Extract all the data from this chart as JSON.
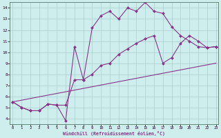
{
  "xlabel": "Windchill (Refroidissement éolien,°C)",
  "bg_color": "#cdeeed",
  "line_color": "#883388",
  "grid_color": "#a8cccc",
  "line1_x": [
    0,
    1,
    2,
    3,
    4,
    5,
    6,
    7,
    8,
    9,
    10,
    11,
    12,
    13,
    14,
    15,
    16,
    17,
    18,
    19,
    20,
    21,
    22,
    23
  ],
  "line1_y": [
    5.5,
    5.0,
    4.7,
    4.7,
    5.3,
    5.2,
    3.8,
    10.5,
    7.5,
    12.2,
    13.3,
    13.7,
    13.0,
    14.0,
    13.7,
    14.5,
    13.7,
    13.5,
    12.3,
    11.5,
    11.0,
    10.5,
    10.4,
    10.5
  ],
  "line2_x": [
    0,
    1,
    2,
    3,
    4,
    5,
    6,
    7,
    8,
    9,
    10,
    11,
    12,
    13,
    14,
    15,
    16,
    17,
    18,
    19,
    20,
    21,
    22,
    23
  ],
  "line2_y": [
    5.5,
    5.0,
    4.7,
    4.7,
    5.3,
    5.2,
    5.2,
    7.5,
    7.5,
    8.0,
    8.8,
    9.0,
    9.8,
    10.3,
    10.8,
    11.2,
    11.5,
    9.0,
    9.5,
    10.8,
    11.5,
    11.0,
    10.4,
    10.5
  ],
  "line3_x": [
    0,
    23
  ],
  "line3_y": [
    5.5,
    9.0
  ],
  "xlim": [
    -0.3,
    23.3
  ],
  "ylim": [
    3.5,
    14.5
  ],
  "xtick_labels": [
    "0",
    "1",
    "2",
    "3",
    "4",
    "5",
    "6",
    "7",
    "8",
    "9",
    "10",
    "11",
    "12",
    "13",
    "14",
    "15",
    "16",
    "17",
    "18",
    "19",
    "20",
    "21",
    "22",
    "23"
  ],
  "ytick_labels": [
    "4",
    "5",
    "6",
    "7",
    "8",
    "9",
    "10",
    "11",
    "12",
    "13",
    "14"
  ]
}
